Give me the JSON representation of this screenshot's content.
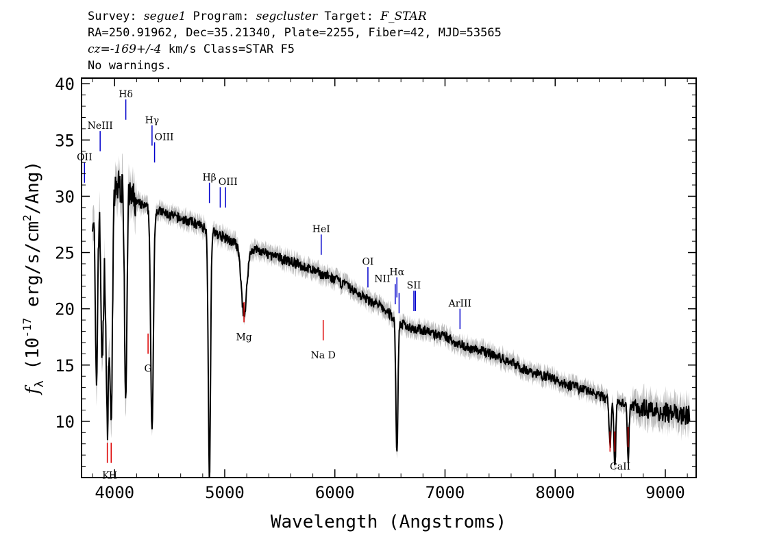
{
  "header": {
    "line1": {
      "survey_label": "Survey: ",
      "survey": "segue1",
      "program_label": " Program: ",
      "program": "segcluster",
      "target_label": " Target: ",
      "target": "F_STAR"
    },
    "line2": "RA=250.91962, Dec=35.21340, Plate=2255, Fiber=42, MJD=53565",
    "line3": {
      "cz_label": "cz=",
      "cz": "-169+/-4",
      "rest": " km/s Class=STAR F5"
    },
    "line4": "No warnings."
  },
  "chart_data": {
    "type": "line",
    "xlabel": "Wavelength (Angstroms)",
    "ylabel": "f_λ (10^-17 erg/s/cm^2/Ang)",
    "xlim": [
      3700,
      9280
    ],
    "ylim": [
      5,
      40.5
    ],
    "xticks": [
      4000,
      5000,
      6000,
      7000,
      8000,
      9000
    ],
    "yticks": [
      10,
      15,
      20,
      25,
      30,
      35,
      40
    ],
    "colors": {
      "spectrum": "#000000",
      "error_band": "#bdbdbd",
      "emission": "#0000cc",
      "absorption": "#dd0000"
    },
    "continuum": [
      [
        3800,
        28.5
      ],
      [
        3850,
        29
      ],
      [
        3900,
        29.5
      ],
      [
        3950,
        30
      ],
      [
        4000,
        30.5
      ],
      [
        4050,
        31
      ],
      [
        4100,
        30.2
      ],
      [
        4200,
        29.4
      ],
      [
        4300,
        29
      ],
      [
        4400,
        28.7
      ],
      [
        4500,
        28.3
      ],
      [
        4600,
        28
      ],
      [
        4700,
        27.7
      ],
      [
        4800,
        27.3
      ],
      [
        4900,
        26.8
      ],
      [
        5000,
        26.3
      ],
      [
        5100,
        25.8
      ],
      [
        5200,
        25.4
      ],
      [
        5300,
        25.2
      ],
      [
        5400,
        24.8
      ],
      [
        5500,
        24.5
      ],
      [
        5600,
        24.2
      ],
      [
        5700,
        23.8
      ],
      [
        5800,
        23.4
      ],
      [
        5900,
        23
      ],
      [
        6000,
        22.6
      ],
      [
        6100,
        22.1
      ],
      [
        6200,
        21.4
      ],
      [
        6300,
        20.8
      ],
      [
        6400,
        20.3
      ],
      [
        6500,
        19.5
      ],
      [
        6600,
        18.6
      ],
      [
        6700,
        18.3
      ],
      [
        6800,
        18.1
      ],
      [
        6900,
        17.8
      ],
      [
        7000,
        17.5
      ],
      [
        7100,
        17
      ],
      [
        7200,
        16.6
      ],
      [
        7300,
        16.3
      ],
      [
        7400,
        16.1
      ],
      [
        7500,
        15.6
      ],
      [
        7600,
        15.3
      ],
      [
        7700,
        14.7
      ],
      [
        7800,
        14.3
      ],
      [
        7900,
        14.1
      ],
      [
        8000,
        13.7
      ],
      [
        8100,
        13.3
      ],
      [
        8200,
        13
      ],
      [
        8300,
        12.7
      ],
      [
        8400,
        12.3
      ],
      [
        8500,
        11.8
      ],
      [
        8600,
        11.7
      ],
      [
        8700,
        11.4
      ],
      [
        8800,
        11.2
      ],
      [
        8900,
        11
      ],
      [
        9000,
        10.8
      ],
      [
        9100,
        10.6
      ],
      [
        9200,
        10.5
      ]
    ],
    "absorption_features": [
      [
        3835,
        16,
        10
      ],
      [
        3889,
        14,
        12
      ],
      [
        3933,
        20,
        12
      ],
      [
        3968,
        20,
        12
      ],
      [
        4101,
        18,
        10
      ],
      [
        4340,
        20,
        12
      ],
      [
        4861,
        22,
        10
      ],
      [
        5175,
        6,
        25
      ],
      [
        6563,
        12,
        9
      ],
      [
        8498,
        4,
        8
      ],
      [
        8542,
        6,
        8
      ],
      [
        8662,
        5,
        8
      ]
    ],
    "emission_lines": [
      {
        "label": "OII",
        "x": 3727,
        "y1": 31.2,
        "y2": 33.0,
        "lx": 3727,
        "ly": 33.5
      },
      {
        "label": "NeIII",
        "x": 3869,
        "y1": 34.0,
        "y2": 35.8,
        "lx": 3869,
        "ly": 36.3
      },
      {
        "label": "Hδ",
        "x": 4102,
        "y1": 36.8,
        "y2": 38.6,
        "lx": 4102,
        "ly": 39.1
      },
      {
        "label": "Hγ",
        "x": 4340,
        "y1": 34.5,
        "y2": 36.3,
        "lx": 4340,
        "ly": 36.8
      },
      {
        "label": "OIII",
        "x": 4363,
        "y1": 33.0,
        "y2": 34.8,
        "lx": 4450,
        "ly": 35.3
      },
      {
        "label": "Hβ",
        "x": 4861,
        "y1": 29.4,
        "y2": 31.2,
        "lx": 4861,
        "ly": 31.7
      },
      {
        "label": "OIII",
        "x": 4959,
        "y1": 29.0,
        "y2": 30.8,
        "lx": 5030,
        "ly": 31.3
      },
      {
        "label": "OIII",
        "x": 5007,
        "y1": 29.0,
        "y2": 30.8,
        "lx": null,
        "ly": null
      },
      {
        "label": "HeI",
        "x": 5876,
        "y1": 24.8,
        "y2": 26.6,
        "lx": 5876,
        "ly": 27.1
      },
      {
        "label": "OI",
        "x": 6300,
        "y1": 21.9,
        "y2": 23.7,
        "lx": 6300,
        "ly": 24.2
      },
      {
        "label": "NII",
        "x": 6548,
        "y1": 20.4,
        "y2": 22.2,
        "lx": 6430,
        "ly": 22.7
      },
      {
        "label": "Hα",
        "x": 6563,
        "y1": 21.0,
        "y2": 22.8,
        "lx": 6563,
        "ly": 23.3
      },
      {
        "label": "NII",
        "x": 6583,
        "y1": 19.6,
        "y2": 21.4,
        "lx": null,
        "ly": null
      },
      {
        "label": "SII",
        "x": 6717,
        "y1": 19.8,
        "y2": 21.6,
        "lx": 6717,
        "ly": 22.1
      },
      {
        "label": "SII",
        "x": 6731,
        "y1": 19.8,
        "y2": 21.6,
        "lx": null,
        "ly": null
      },
      {
        "label": "ArIII",
        "x": 7136,
        "y1": 18.2,
        "y2": 20.0,
        "lx": 7136,
        "ly": 20.5
      }
    ],
    "absorption_lines": [
      {
        "label": "K",
        "x": 3934,
        "y1": 6.3,
        "y2": 8.1,
        "lx": 3920,
        "ly": 5.2
      },
      {
        "label": "H",
        "x": 3969,
        "y1": 6.3,
        "y2": 8.1,
        "lx": 3985,
        "ly": 5.2
      },
      {
        "label": "G",
        "x": 4304,
        "y1": 16.0,
        "y2": 17.8,
        "lx": 4304,
        "ly": 14.7
      },
      {
        "label": "Mg",
        "x": 5175,
        "y1": 18.8,
        "y2": 20.6,
        "lx": 5175,
        "ly": 17.5
      },
      {
        "label": "Na D",
        "x": 5894,
        "y1": 17.2,
        "y2": 19.0,
        "lx": 5894,
        "ly": 15.9
      },
      {
        "label": "CaII",
        "x": 8498,
        "y1": 7.3,
        "y2": 9.1,
        "lx": 8590,
        "ly": 6.0
      },
      {
        "label": "CaII",
        "x": 8542,
        "y1": 7.3,
        "y2": 9.1,
        "lx": null,
        "ly": null
      },
      {
        "label": "CaII",
        "x": 8662,
        "y1": 7.7,
        "y2": 9.5,
        "lx": null,
        "ly": null
      }
    ]
  }
}
